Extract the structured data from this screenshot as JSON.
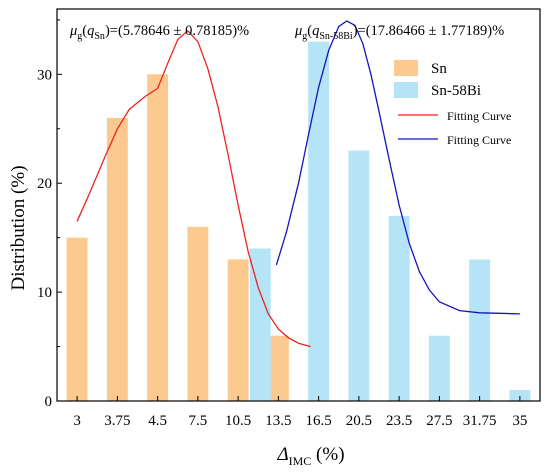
{
  "chart_data": {
    "type": "bar",
    "categories": [
      "3",
      "3.75",
      "4.5",
      "7.5",
      "10.5",
      "13.5",
      "16.5",
      "20.5",
      "23.5",
      "27.5",
      "31.75",
      "35"
    ],
    "series": [
      {
        "name": "Sn",
        "color": "#fcc98f",
        "points": [
          {
            "x": "3",
            "y": 15
          },
          {
            "x": "3.75",
            "y": 26
          },
          {
            "x": "4.5",
            "y": 30
          },
          {
            "x": "7.5",
            "y": 16
          },
          {
            "x": "10.5",
            "y": 13
          },
          {
            "x": "13.5",
            "y": 6
          }
        ]
      },
      {
        "name": "Sn-58Bi",
        "color": "#b5e4f7",
        "points": [
          {
            "x": "10.5",
            "y": 14
          },
          {
            "x": "16.5",
            "y": 33
          },
          {
            "x": "20.5",
            "y": 23
          },
          {
            "x": "23.5",
            "y": 17
          },
          {
            "x": "27.5",
            "y": 6
          },
          {
            "x": "31.75",
            "y": 13
          },
          {
            "x": "35",
            "y": 1
          }
        ]
      }
    ],
    "fits": [
      {
        "name": "Fitting Curve",
        "color": "#ee2222",
        "points": [
          [
            0.0,
            16.5
          ],
          [
            0.3,
            19.0
          ],
          [
            0.7,
            22.5
          ],
          [
            1.0,
            25.0
          ],
          [
            1.3,
            26.8
          ],
          [
            1.7,
            28.0
          ],
          [
            2.0,
            28.7
          ],
          [
            2.25,
            31.0
          ],
          [
            2.5,
            33.2
          ],
          [
            2.75,
            34.0
          ],
          [
            3.0,
            33.0
          ],
          [
            3.25,
            30.5
          ],
          [
            3.5,
            27.0
          ],
          [
            3.75,
            22.6
          ],
          [
            4.0,
            18.0
          ],
          [
            4.25,
            13.7
          ],
          [
            4.5,
            10.4
          ],
          [
            4.75,
            8.0
          ],
          [
            5.0,
            6.6
          ],
          [
            5.25,
            5.8
          ],
          [
            5.5,
            5.3
          ],
          [
            5.8,
            5.0
          ]
        ]
      },
      {
        "name": "Fitting Curve",
        "color": "#1515b8",
        "points": [
          [
            4.95,
            12.5
          ],
          [
            5.2,
            15.5
          ],
          [
            5.5,
            20.0
          ],
          [
            5.75,
            24.5
          ],
          [
            6.0,
            28.8
          ],
          [
            6.25,
            32.2
          ],
          [
            6.5,
            34.4
          ],
          [
            6.7,
            34.9
          ],
          [
            6.9,
            34.5
          ],
          [
            7.1,
            32.8
          ],
          [
            7.3,
            30.0
          ],
          [
            7.5,
            26.6
          ],
          [
            7.75,
            22.2
          ],
          [
            8.0,
            18.0
          ],
          [
            8.25,
            14.5
          ],
          [
            8.5,
            11.9
          ],
          [
            8.75,
            10.2
          ],
          [
            9.0,
            9.1
          ],
          [
            9.5,
            8.3
          ],
          [
            10.0,
            8.1
          ],
          [
            10.5,
            8.05
          ],
          [
            11.0,
            8.0
          ]
        ]
      }
    ],
    "ylim": [
      0,
      36
    ],
    "yticks": [
      0,
      10,
      20,
      30
    ],
    "xlabel_main": "Δ",
    "xlabel_sub": "IMC",
    "xlabel_unit": " (%)",
    "ylabel": "Distribution (%)",
    "legend": {
      "position": "top-right",
      "bar_entries": [
        {
          "label": "Sn",
          "color": "#fcc98f"
        },
        {
          "label": "Sn-58Bi",
          "color": "#b5e4f7"
        }
      ],
      "line_entries": [
        {
          "label": "Fitting Curve",
          "color": "#ee2222"
        },
        {
          "label": "Fitting Curve",
          "color": "#1515b8"
        }
      ]
    },
    "annotations": [
      {
        "mu": "μ",
        "g": "g",
        "open": "(",
        "q": "q",
        "sub": "Sn",
        "value": ")=(5.78646 ± 0.78185)%"
      },
      {
        "mu": "μ",
        "g": "g",
        "open": "(",
        "q": "q",
        "sub": "Sn-58Bi",
        "value": ")=(17.86466 ± 1.77189)%"
      }
    ]
  }
}
